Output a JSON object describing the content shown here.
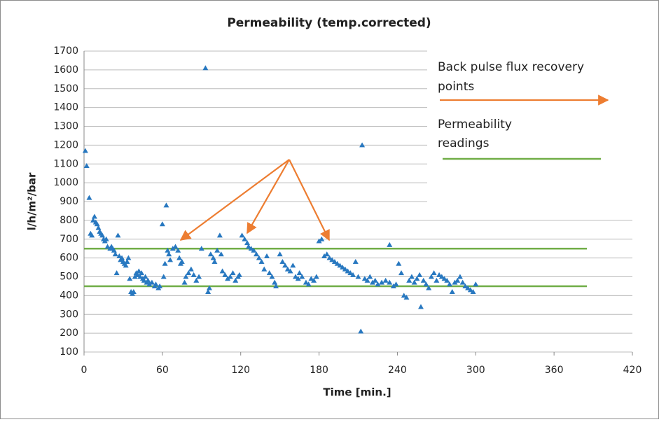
{
  "chart_data": {
    "type": "scatter",
    "title": "Permeability (temp.corrected)",
    "x_label": "Time [min.]",
    "y_label": "l/h/m²/bar",
    "xlim": [
      0,
      420
    ],
    "xticks": [
      0,
      60,
      120,
      180,
      240,
      300,
      360,
      420
    ],
    "ylim": [
      100,
      1700
    ],
    "yticks": [
      100,
      200,
      300,
      400,
      500,
      600,
      700,
      800,
      900,
      1000,
      1100,
      1200,
      1300,
      1400,
      1500,
      1600,
      1700
    ],
    "grid": true,
    "series": [
      {
        "name": "Permeability",
        "color": "#2878c0",
        "x": [
          1,
          2,
          4,
          5,
          6,
          7,
          8,
          9,
          10,
          11,
          12,
          13,
          14,
          15,
          16,
          17,
          18,
          20,
          21,
          22,
          23,
          24,
          25,
          26,
          27,
          28,
          29,
          30,
          31,
          32,
          33,
          34,
          35,
          36,
          37,
          38,
          39,
          40,
          41,
          42,
          43,
          44,
          45,
          46,
          47,
          48,
          49,
          50,
          52,
          54,
          55,
          57,
          58,
          60,
          61,
          62,
          63,
          64,
          65,
          66,
          68,
          70,
          72,
          73,
          74,
          75,
          77,
          78,
          80,
          82,
          84,
          86,
          88,
          90,
          93,
          95,
          96,
          97,
          99,
          100,
          102,
          104,
          105,
          106,
          108,
          110,
          112,
          114,
          116,
          118,
          119,
          121,
          123,
          125,
          126,
          128,
          130,
          132,
          134,
          136,
          138,
          140,
          142,
          144,
          146,
          147,
          150,
          152,
          154,
          156,
          158,
          160,
          162,
          164,
          165,
          167,
          170,
          172,
          174,
          176,
          178,
          180,
          182,
          184,
          186,
          188,
          190,
          192,
          194,
          196,
          198,
          200,
          202,
          204,
          206,
          208,
          210,
          212,
          213,
          215,
          217,
          219,
          221,
          223,
          225,
          228,
          231,
          234,
          234,
          237,
          239,
          241,
          243,
          245,
          247,
          249,
          251,
          253,
          255,
          257,
          258,
          260,
          262,
          264,
          266,
          268,
          270,
          272,
          274,
          276,
          278,
          280,
          282,
          284,
          286,
          288,
          290,
          292,
          294,
          296,
          298,
          300
        ],
        "values": [
          1170,
          1090,
          920,
          730,
          720,
          800,
          820,
          790,
          780,
          760,
          740,
          730,
          720,
          700,
          690,
          700,
          660,
          650,
          660,
          650,
          640,
          620,
          520,
          720,
          610,
          590,
          600,
          580,
          570,
          560,
          580,
          600,
          490,
          420,
          410,
          420,
          500,
          520,
          510,
          530,
          500,
          520,
          490,
          480,
          500,
          470,
          480,
          460,
          470,
          450,
          460,
          440,
          450,
          780,
          500,
          570,
          880,
          640,
          620,
          590,
          650,
          660,
          640,
          600,
          570,
          580,
          470,
          500,
          520,
          540,
          510,
          480,
          500,
          650,
          1610,
          420,
          440,
          620,
          600,
          580,
          640,
          720,
          620,
          530,
          510,
          490,
          500,
          520,
          480,
          500,
          510,
          720,
          700,
          680,
          660,
          650,
          640,
          620,
          600,
          580,
          540,
          610,
          520,
          500,
          470,
          450,
          620,
          580,
          560,
          540,
          530,
          560,
          500,
          490,
          520,
          500,
          470,
          460,
          490,
          480,
          500,
          690,
          700,
          610,
          620,
          600,
          590,
          580,
          570,
          560,
          550,
          540,
          530,
          520,
          510,
          580,
          500,
          210,
          1200,
          490,
          480,
          500,
          470,
          480,
          460,
          470,
          480,
          470,
          670,
          450,
          460,
          570,
          520,
          400,
          390,
          480,
          500,
          470,
          490,
          510,
          340,
          480,
          460,
          440,
          500,
          520,
          480,
          510,
          500,
          490,
          480,
          460,
          420,
          470,
          480,
          500,
          470,
          450,
          440,
          430,
          420,
          460
        ]
      }
    ],
    "reference_lines": {
      "values": [
        650,
        450
      ],
      "color": "#70ad47"
    },
    "annotations": {
      "arrow_color": "#ed7d31",
      "legend": [
        {
          "lines": [
            "Back pulse flux recovery",
            "points"
          ]
        },
        {
          "lines": [
            "Permeability",
            "readings"
          ]
        }
      ]
    }
  }
}
